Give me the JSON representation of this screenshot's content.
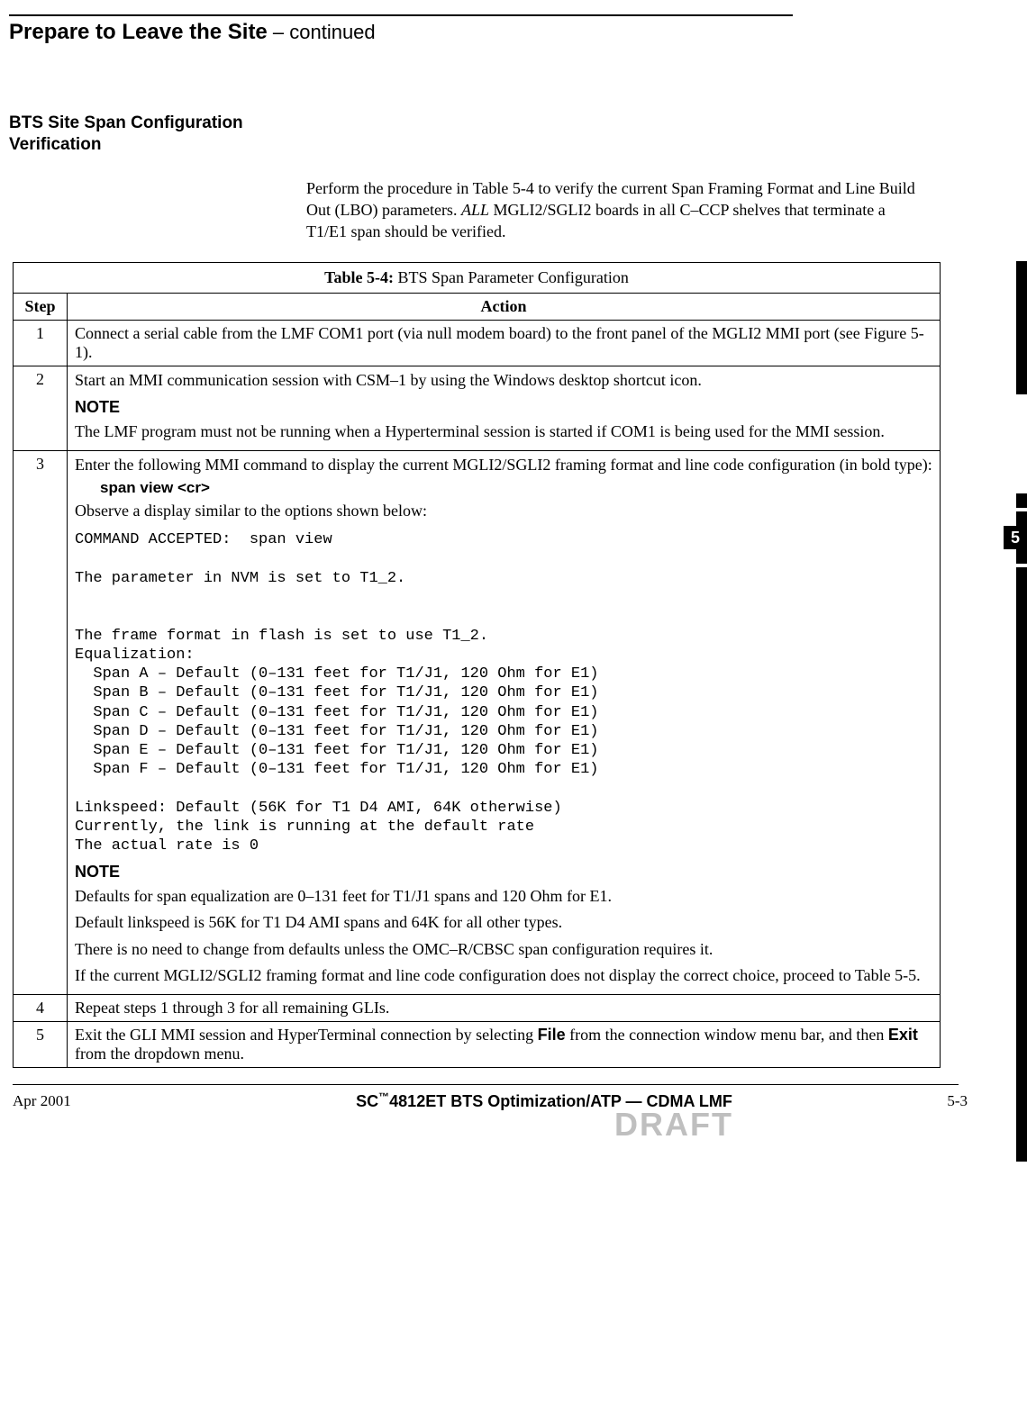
{
  "page_title_main": "Prepare to Leave the Site",
  "page_title_cont": " – continued",
  "section_heading_line1": "BTS Site Span Configuration",
  "section_heading_line2": "Verification",
  "intro_before_italic": "Perform the procedure in Table 5-4 to verify the current Span Framing Format and Line Build Out (LBO) parameters. ",
  "intro_italic": "ALL",
  "intro_after_italic": " MGLI2/SGLI2 boards in all C–CCP shelves that terminate a T1/E1 span should be verified.",
  "table": {
    "caption_label": "Table 5-4:",
    "caption_text": " BTS Span Parameter Configuration",
    "col_step": "Step",
    "col_action": "Action",
    "rows": [
      {
        "n": "1",
        "text": "Connect a serial cable from the LMF COM1 port (via null modem board) to the front panel of the MGLI2 MMI port (see Figure 5-1)."
      },
      {
        "n": "2",
        "text": "Start an MMI communication session with CSM–1 by using the Windows desktop shortcut icon.",
        "note_label": "NOTE",
        "note_text": "The LMF program must not be running when a Hyperterminal session is started if COM1 is being used for the MMI session."
      },
      {
        "n": "3",
        "lead": "Enter the following MMI command to display the current MGLI2/SGLI2 framing format and line code configuration (in bold type):",
        "cmd": "span  view  <cr>",
        "observe": "Observe a display similar to the options shown below:",
        "mono": "COMMAND ACCEPTED:  span view\n\nThe parameter in NVM is set to T1_2.\n\n\nThe frame format in flash is set to use T1_2.\nEqualization:\n  Span A – Default (0–131 feet for T1/J1, 120 Ohm for E1)\n  Span B – Default (0–131 feet for T1/J1, 120 Ohm for E1)\n  Span C – Default (0–131 feet for T1/J1, 120 Ohm for E1)\n  Span D – Default (0–131 feet for T1/J1, 120 Ohm for E1)\n  Span E – Default (0–131 feet for T1/J1, 120 Ohm for E1)\n  Span F – Default (0–131 feet for T1/J1, 120 Ohm for E1)\n\nLinkspeed: Default (56K for T1 D4 AMI, 64K otherwise)\nCurrently, the link is running at the default rate\nThe actual rate is 0",
        "note_label": "NOTE",
        "note_p1": "Defaults for span equalization are 0–131 feet for T1/J1 spans and 120 Ohm for E1.",
        "note_p2": "Default linkspeed is 56K for T1 D4 AMI spans and 64K for all other types.",
        "note_p3": "There is no need to change from defaults unless the OMC–R/CBSC span configuration requires it.",
        "note_p4": "If the current MGLI2/SGLI2 framing format and line code configuration does not display the correct choice, proceed to Table 5-5."
      },
      {
        "n": "4",
        "text": "Repeat steps 1 through 3 for all remaining GLIs."
      },
      {
        "n": "5",
        "pre": "Exit the GLI MMI session and HyperTerminal connection by selecting ",
        "file_word": "File",
        "mid": " from the connection window menu bar, and then ",
        "exit_word": "Exit",
        "post": " from the dropdown menu."
      }
    ]
  },
  "side_tab": "5",
  "footer": {
    "date": "Apr 2001",
    "center_pre": "SC",
    "tm": "™",
    "center_post": "4812ET BTS Optimization/ATP — CDMA LMF",
    "pagenum": "5-3",
    "draft": "DRAFT"
  }
}
